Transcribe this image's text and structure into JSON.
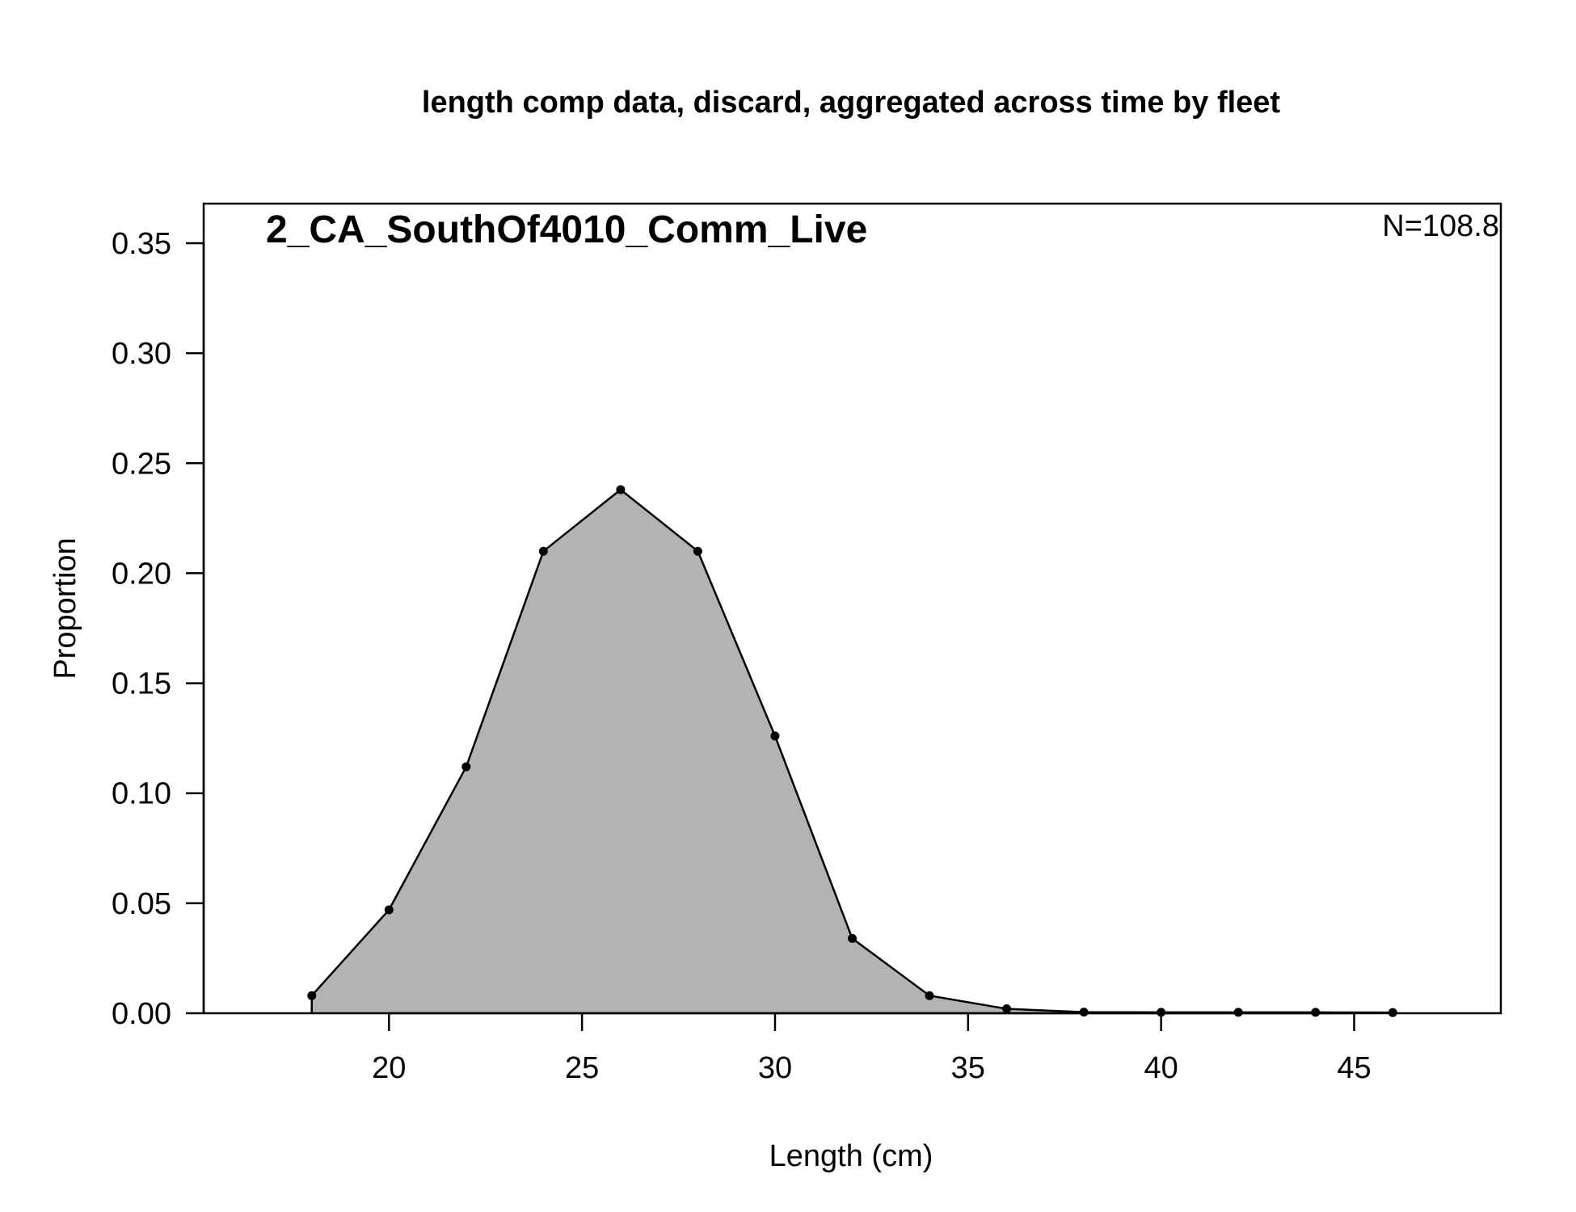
{
  "chart_data": {
    "type": "area",
    "title": "length comp data, discard, aggregated across time by fleet",
    "panel_label": "2_CA_SouthOf4010_Comm_Live",
    "sample_size_label": "N=108.8",
    "xlabel": "Length (cm)",
    "ylabel": "Proportion",
    "xlim": [
      15.2,
      48.8
    ],
    "ylim": [
      0,
      0.368
    ],
    "xticks": [
      20,
      25,
      30,
      35,
      40,
      45
    ],
    "xtick_labels": [
      "20",
      "25",
      "30",
      "35",
      "40",
      "45"
    ],
    "yticks": [
      0,
      0.05,
      0.1,
      0.15,
      0.2,
      0.25,
      0.3,
      0.35
    ],
    "ytick_labels": [
      "0.00",
      "0.05",
      "0.10",
      "0.15",
      "0.20",
      "0.25",
      "0.30",
      "0.35"
    ],
    "grid": false,
    "fill_color": "#b3b3b3",
    "line_color": "#000000",
    "series": [
      {
        "x": [
          18,
          20,
          22,
          24,
          26,
          28,
          30,
          32,
          34,
          36,
          38,
          40,
          42,
          44,
          46
        ],
        "values": [
          0.008,
          0.047,
          0.112,
          0.21,
          0.238,
          0.21,
          0.126,
          0.034,
          0.008,
          0.002,
          0.0005,
          0.0004,
          0.0004,
          0.0004,
          0.0003
        ]
      }
    ]
  }
}
